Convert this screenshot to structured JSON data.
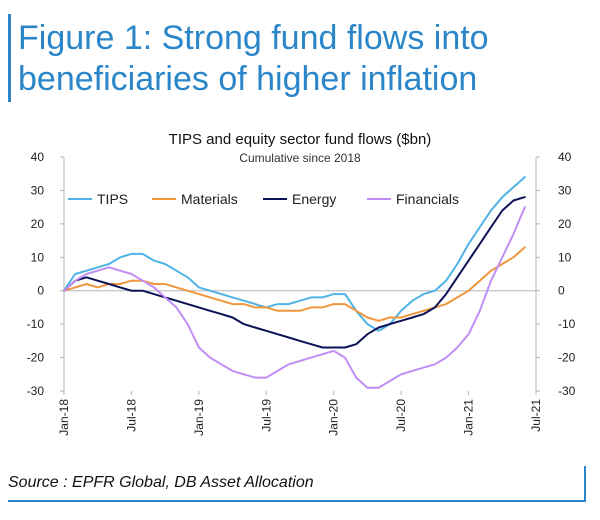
{
  "figure": {
    "title_line1": "Figure 1: Strong fund flows into",
    "title_line2": "beneficiaries of higher inflation"
  },
  "source": "Source : EPFR Global, DB Asset Allocation",
  "chart_data": {
    "type": "line",
    "title": "TIPS and equity sector fund flows ($bn)",
    "subtitle": "Cumulative since 2018",
    "ylim": [
      -30,
      40
    ],
    "yticks": [
      -30,
      -20,
      -10,
      0,
      10,
      20,
      30,
      40
    ],
    "y2ticks": [
      -30,
      -20,
      -10,
      0,
      10,
      20,
      30,
      40
    ],
    "xlim": [
      "2018-01",
      "2021-07"
    ],
    "xtick_labels": [
      "Jan-18",
      "Jul-18",
      "Jan-19",
      "Jul-19",
      "Jan-20",
      "Jul-20",
      "Jan-21",
      "Jul-21"
    ],
    "grid": false,
    "legend_position": "top-left",
    "series": [
      {
        "name": "TIPS",
        "color": "#4fb3e6",
        "points": [
          [
            "2018-01",
            0
          ],
          [
            "2018-02",
            5
          ],
          [
            "2018-03",
            6
          ],
          [
            "2018-04",
            7
          ],
          [
            "2018-05",
            8
          ],
          [
            "2018-06",
            10
          ],
          [
            "2018-07",
            11
          ],
          [
            "2018-08",
            11
          ],
          [
            "2018-09",
            9
          ],
          [
            "2018-10",
            8
          ],
          [
            "2018-11",
            6
          ],
          [
            "2018-12",
            4
          ],
          [
            "2019-01",
            1
          ],
          [
            "2019-02",
            0
          ],
          [
            "2019-03",
            -1
          ],
          [
            "2019-04",
            -2
          ],
          [
            "2019-05",
            -3
          ],
          [
            "2019-06",
            -4
          ],
          [
            "2019-07",
            -5
          ],
          [
            "2019-08",
            -4
          ],
          [
            "2019-09",
            -4
          ],
          [
            "2019-10",
            -3
          ],
          [
            "2019-11",
            -2
          ],
          [
            "2019-12",
            -2
          ],
          [
            "2020-01",
            -1
          ],
          [
            "2020-02",
            -1
          ],
          [
            "2020-03",
            -6
          ],
          [
            "2020-04",
            -10
          ],
          [
            "2020-05",
            -12
          ],
          [
            "2020-06",
            -10
          ],
          [
            "2020-07",
            -6
          ],
          [
            "2020-08",
            -3
          ],
          [
            "2020-09",
            -1
          ],
          [
            "2020-10",
            0
          ],
          [
            "2020-11",
            3
          ],
          [
            "2020-12",
            8
          ],
          [
            "2021-01",
            14
          ],
          [
            "2021-02",
            19
          ],
          [
            "2021-03",
            24
          ],
          [
            "2021-04",
            28
          ],
          [
            "2021-05",
            31
          ],
          [
            "2021-06",
            34
          ]
        ]
      },
      {
        "name": "Materials",
        "color": "#f0963c",
        "points": [
          [
            "2018-01",
            0
          ],
          [
            "2018-02",
            1
          ],
          [
            "2018-03",
            2
          ],
          [
            "2018-04",
            1
          ],
          [
            "2018-05",
            2
          ],
          [
            "2018-06",
            2
          ],
          [
            "2018-07",
            3
          ],
          [
            "2018-08",
            3
          ],
          [
            "2018-09",
            2
          ],
          [
            "2018-10",
            2
          ],
          [
            "2018-11",
            1
          ],
          [
            "2018-12",
            0
          ],
          [
            "2019-01",
            -1
          ],
          [
            "2019-02",
            -2
          ],
          [
            "2019-03",
            -3
          ],
          [
            "2019-04",
            -4
          ],
          [
            "2019-05",
            -4
          ],
          [
            "2019-06",
            -5
          ],
          [
            "2019-07",
            -5
          ],
          [
            "2019-08",
            -6
          ],
          [
            "2019-09",
            -6
          ],
          [
            "2019-10",
            -6
          ],
          [
            "2019-11",
            -5
          ],
          [
            "2019-12",
            -5
          ],
          [
            "2020-01",
            -4
          ],
          [
            "2020-02",
            -4
          ],
          [
            "2020-03",
            -6
          ],
          [
            "2020-04",
            -8
          ],
          [
            "2020-05",
            -9
          ],
          [
            "2020-06",
            -8
          ],
          [
            "2020-07",
            -8
          ],
          [
            "2020-08",
            -7
          ],
          [
            "2020-09",
            -6
          ],
          [
            "2020-10",
            -5
          ],
          [
            "2020-11",
            -4
          ],
          [
            "2020-12",
            -2
          ],
          [
            "2021-01",
            0
          ],
          [
            "2021-02",
            3
          ],
          [
            "2021-03",
            6
          ],
          [
            "2021-04",
            8
          ],
          [
            "2021-05",
            10
          ],
          [
            "2021-06",
            13
          ]
        ]
      },
      {
        "name": "Energy",
        "color": "#0c1257",
        "points": [
          [
            "2018-01",
            0
          ],
          [
            "2018-02",
            3
          ],
          [
            "2018-03",
            4
          ],
          [
            "2018-04",
            3
          ],
          [
            "2018-05",
            2
          ],
          [
            "2018-06",
            1
          ],
          [
            "2018-07",
            0
          ],
          [
            "2018-08",
            0
          ],
          [
            "2018-09",
            -1
          ],
          [
            "2018-10",
            -2
          ],
          [
            "2018-11",
            -3
          ],
          [
            "2018-12",
            -4
          ],
          [
            "2019-01",
            -5
          ],
          [
            "2019-02",
            -6
          ],
          [
            "2019-03",
            -7
          ],
          [
            "2019-04",
            -8
          ],
          [
            "2019-05",
            -10
          ],
          [
            "2019-06",
            -11
          ],
          [
            "2019-07",
            -12
          ],
          [
            "2019-08",
            -13
          ],
          [
            "2019-09",
            -14
          ],
          [
            "2019-10",
            -15
          ],
          [
            "2019-11",
            -16
          ],
          [
            "2019-12",
            -17
          ],
          [
            "2020-01",
            -17
          ],
          [
            "2020-02",
            -17
          ],
          [
            "2020-03",
            -16
          ],
          [
            "2020-04",
            -13
          ],
          [
            "2020-05",
            -11
          ],
          [
            "2020-06",
            -10
          ],
          [
            "2020-07",
            -9
          ],
          [
            "2020-08",
            -8
          ],
          [
            "2020-09",
            -7
          ],
          [
            "2020-10",
            -5
          ],
          [
            "2020-11",
            -1
          ],
          [
            "2020-12",
            4
          ],
          [
            "2021-01",
            9
          ],
          [
            "2021-02",
            14
          ],
          [
            "2021-03",
            19
          ],
          [
            "2021-04",
            24
          ],
          [
            "2021-05",
            27
          ],
          [
            "2021-06",
            28
          ]
        ]
      },
      {
        "name": "Financials",
        "color": "#c08ef5",
        "points": [
          [
            "2018-01",
            0
          ],
          [
            "2018-02",
            3
          ],
          [
            "2018-03",
            5
          ],
          [
            "2018-04",
            6
          ],
          [
            "2018-05",
            7
          ],
          [
            "2018-06",
            6
          ],
          [
            "2018-07",
            5
          ],
          [
            "2018-08",
            3
          ],
          [
            "2018-09",
            1
          ],
          [
            "2018-10",
            -2
          ],
          [
            "2018-11",
            -5
          ],
          [
            "2018-12",
            -10
          ],
          [
            "2019-01",
            -17
          ],
          [
            "2019-02",
            -20
          ],
          [
            "2019-03",
            -22
          ],
          [
            "2019-04",
            -24
          ],
          [
            "2019-05",
            -25
          ],
          [
            "2019-06",
            -26
          ],
          [
            "2019-07",
            -26
          ],
          [
            "2019-08",
            -24
          ],
          [
            "2019-09",
            -22
          ],
          [
            "2019-10",
            -21
          ],
          [
            "2019-11",
            -20
          ],
          [
            "2019-12",
            -19
          ],
          [
            "2020-01",
            -18
          ],
          [
            "2020-02",
            -20
          ],
          [
            "2020-03",
            -26
          ],
          [
            "2020-04",
            -29
          ],
          [
            "2020-05",
            -29
          ],
          [
            "2020-06",
            -27
          ],
          [
            "2020-07",
            -25
          ],
          [
            "2020-08",
            -24
          ],
          [
            "2020-09",
            -23
          ],
          [
            "2020-10",
            -22
          ],
          [
            "2020-11",
            -20
          ],
          [
            "2020-12",
            -17
          ],
          [
            "2021-01",
            -13
          ],
          [
            "2021-02",
            -6
          ],
          [
            "2021-03",
            3
          ],
          [
            "2021-04",
            10
          ],
          [
            "2021-05",
            17
          ],
          [
            "2021-06",
            25
          ]
        ]
      }
    ]
  }
}
